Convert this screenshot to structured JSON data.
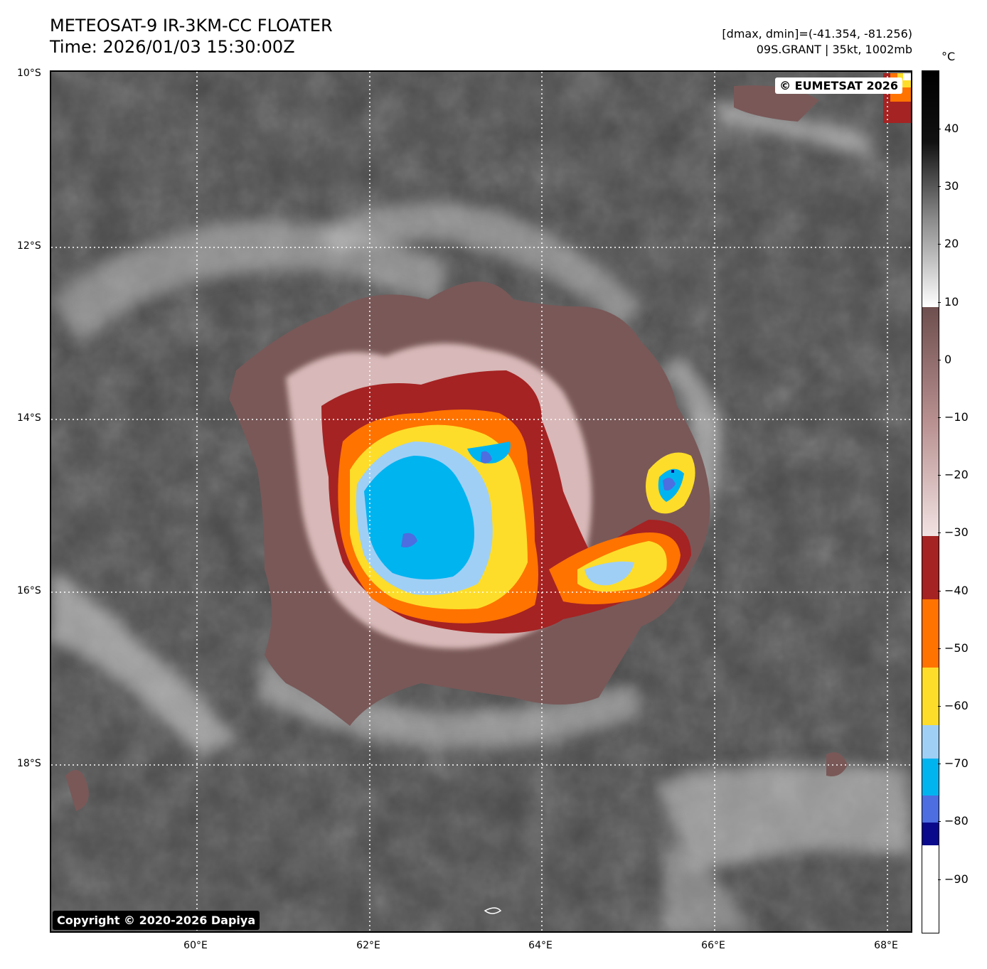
{
  "header": {
    "title": "METEOSAT-9 IR-3KM-CC FLOATER",
    "time": "Time: 2026/01/03 15:30:00Z",
    "dmax_dmin": "[dmax, dmin]=(-41.354, -81.256)",
    "storm_info": "09S.GRANT | 35kt, 1002mb"
  },
  "map": {
    "lat_labels": [
      "10°S",
      "12°S",
      "14°S",
      "16°S",
      "18°S"
    ],
    "lon_labels": [
      "60°E",
      "62°E",
      "64°E",
      "66°E",
      "68°E"
    ],
    "eumetsat_badge": "© EUMETSAT 2026",
    "copyright_badge": "Copyright © 2020-2026 Dapiya",
    "gridlines": "dotted",
    "colors": {
      "background_gray": "#4a4a4a",
      "warm_brown": "#7a5858",
      "pink": "#d8b8b8",
      "dark_red": "#a52323",
      "orange": "#ff7300",
      "yellow": "#fddd2a",
      "light_blue": "#a0cff5",
      "cyan": "#00b4f0",
      "blue": "#4c6ee0",
      "navy": "#0a0a8c"
    }
  },
  "colorbar": {
    "unit": "°C",
    "ticks": [
      "40",
      "30",
      "20",
      "10",
      "0",
      "−10",
      "−20",
      "−30",
      "−40",
      "−50",
      "−60",
      "−70",
      "−80",
      "−90"
    ]
  }
}
